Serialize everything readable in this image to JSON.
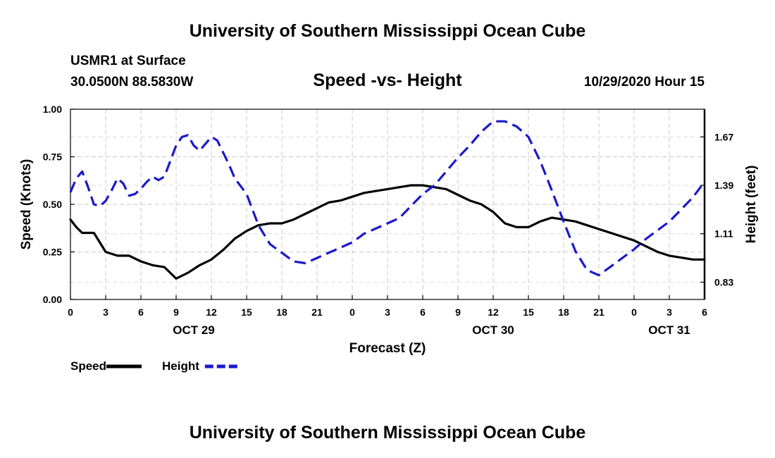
{
  "header": {
    "title": "University of Southern Mississippi Ocean Cube",
    "station": "USMR1 at Surface",
    "coordinates": "30.0500N 88.5830W",
    "chart_title": "Speed -vs- Height",
    "date_hour": "10/29/2020 Hour 15"
  },
  "footer": {
    "title": "University of Southern Mississippi Ocean Cube"
  },
  "chart_data": {
    "type": "line",
    "title": "Speed -vs- Height",
    "xlabel": "Forecast (Z)",
    "ylabel": "Speed (Knots)",
    "y2label": "Height (feet)",
    "grid": true,
    "x_range": [
      0,
      54
    ],
    "x_ticks": [
      0,
      3,
      6,
      9,
      12,
      15,
      18,
      21,
      24,
      27,
      30,
      33,
      36,
      39,
      42,
      45,
      48,
      51,
      54
    ],
    "x_tick_labels": [
      "0",
      "3",
      "6",
      "9",
      "12",
      "15",
      "18",
      "21",
      "0",
      "3",
      "6",
      "9",
      "12",
      "15",
      "18",
      "21",
      "0",
      "3",
      "6"
    ],
    "date_labels": [
      {
        "label": "OCT 29",
        "x": 10.5
      },
      {
        "label": "OCT 30",
        "x": 36
      },
      {
        "label": "OCT 31",
        "x": 51
      }
    ],
    "y_range": [
      0,
      1
    ],
    "y_ticks": [
      0,
      0.25,
      0.5,
      0.75,
      1
    ],
    "y_tick_labels": [
      "0.00",
      "0.25",
      "0.50",
      "0.75",
      "1.00"
    ],
    "y2_range": [
      0.73,
      1.83
    ],
    "y2_ticks": [
      0.83,
      1.11,
      1.39,
      1.67
    ],
    "y2_tick_labels": [
      "0.83",
      "1.11",
      "1.39",
      "1.67"
    ],
    "legend": [
      {
        "name": "Speed",
        "color": "#000000",
        "style": "solid"
      },
      {
        "name": "Height",
        "color": "#1a1acc",
        "style": "dashed"
      }
    ],
    "series": [
      {
        "name": "Speed",
        "axis": "left",
        "color": "#000000",
        "style": "solid",
        "x": [
          0,
          0.5,
          1,
          2,
          3,
          4,
          5,
          6,
          7,
          8,
          9,
          10,
          11,
          12,
          13,
          14,
          15,
          16,
          17,
          18,
          19,
          20,
          21,
          22,
          23,
          24,
          25,
          26,
          27,
          28,
          29,
          30,
          31,
          32,
          33,
          34,
          35,
          36,
          37,
          38,
          39,
          40,
          41,
          42,
          43,
          44,
          45,
          46,
          47,
          48,
          49,
          50,
          51,
          52,
          53,
          54
        ],
        "values": [
          0.42,
          0.38,
          0.35,
          0.35,
          0.25,
          0.23,
          0.23,
          0.2,
          0.18,
          0.17,
          0.11,
          0.14,
          0.18,
          0.21,
          0.26,
          0.32,
          0.36,
          0.39,
          0.4,
          0.4,
          0.42,
          0.45,
          0.48,
          0.51,
          0.52,
          0.54,
          0.56,
          0.57,
          0.58,
          0.59,
          0.6,
          0.6,
          0.59,
          0.58,
          0.55,
          0.52,
          0.5,
          0.46,
          0.4,
          0.38,
          0.38,
          0.41,
          0.43,
          0.42,
          0.41,
          0.39,
          0.37,
          0.35,
          0.33,
          0.31,
          0.28,
          0.25,
          0.23,
          0.22,
          0.21,
          0.21
        ]
      },
      {
        "name": "Height",
        "axis": "right",
        "color": "#1a1acc",
        "style": "dashed",
        "x": [
          0,
          0.5,
          1,
          1.5,
          2,
          2.5,
          3,
          3.5,
          4,
          4.5,
          5,
          5.5,
          6,
          6.5,
          7,
          7.5,
          8,
          8.5,
          9,
          9.5,
          10,
          10.5,
          11,
          11.5,
          12,
          12.5,
          13,
          13.5,
          14,
          15,
          16,
          17,
          18,
          19,
          20,
          21,
          22,
          23,
          24,
          25,
          26,
          27,
          28,
          29,
          30,
          31,
          32,
          33,
          34,
          35,
          36,
          37,
          38,
          39,
          40,
          41,
          42,
          43,
          44,
          45,
          46,
          47,
          48,
          49,
          50,
          51,
          52,
          53,
          54
        ],
        "values": [
          1.35,
          1.43,
          1.47,
          1.38,
          1.28,
          1.27,
          1.3,
          1.36,
          1.43,
          1.4,
          1.33,
          1.34,
          1.37,
          1.41,
          1.44,
          1.42,
          1.44,
          1.53,
          1.62,
          1.67,
          1.68,
          1.62,
          1.59,
          1.63,
          1.67,
          1.65,
          1.58,
          1.51,
          1.43,
          1.34,
          1.16,
          1.05,
          1.0,
          0.95,
          0.94,
          0.97,
          1.0,
          1.03,
          1.06,
          1.11,
          1.14,
          1.17,
          1.2,
          1.27,
          1.34,
          1.39,
          1.47,
          1.55,
          1.62,
          1.7,
          1.76,
          1.76,
          1.73,
          1.67,
          1.53,
          1.36,
          1.18,
          1.01,
          0.9,
          0.87,
          0.92,
          0.97,
          1.02,
          1.08,
          1.13,
          1.18,
          1.25,
          1.32,
          1.41
        ]
      }
    ]
  }
}
